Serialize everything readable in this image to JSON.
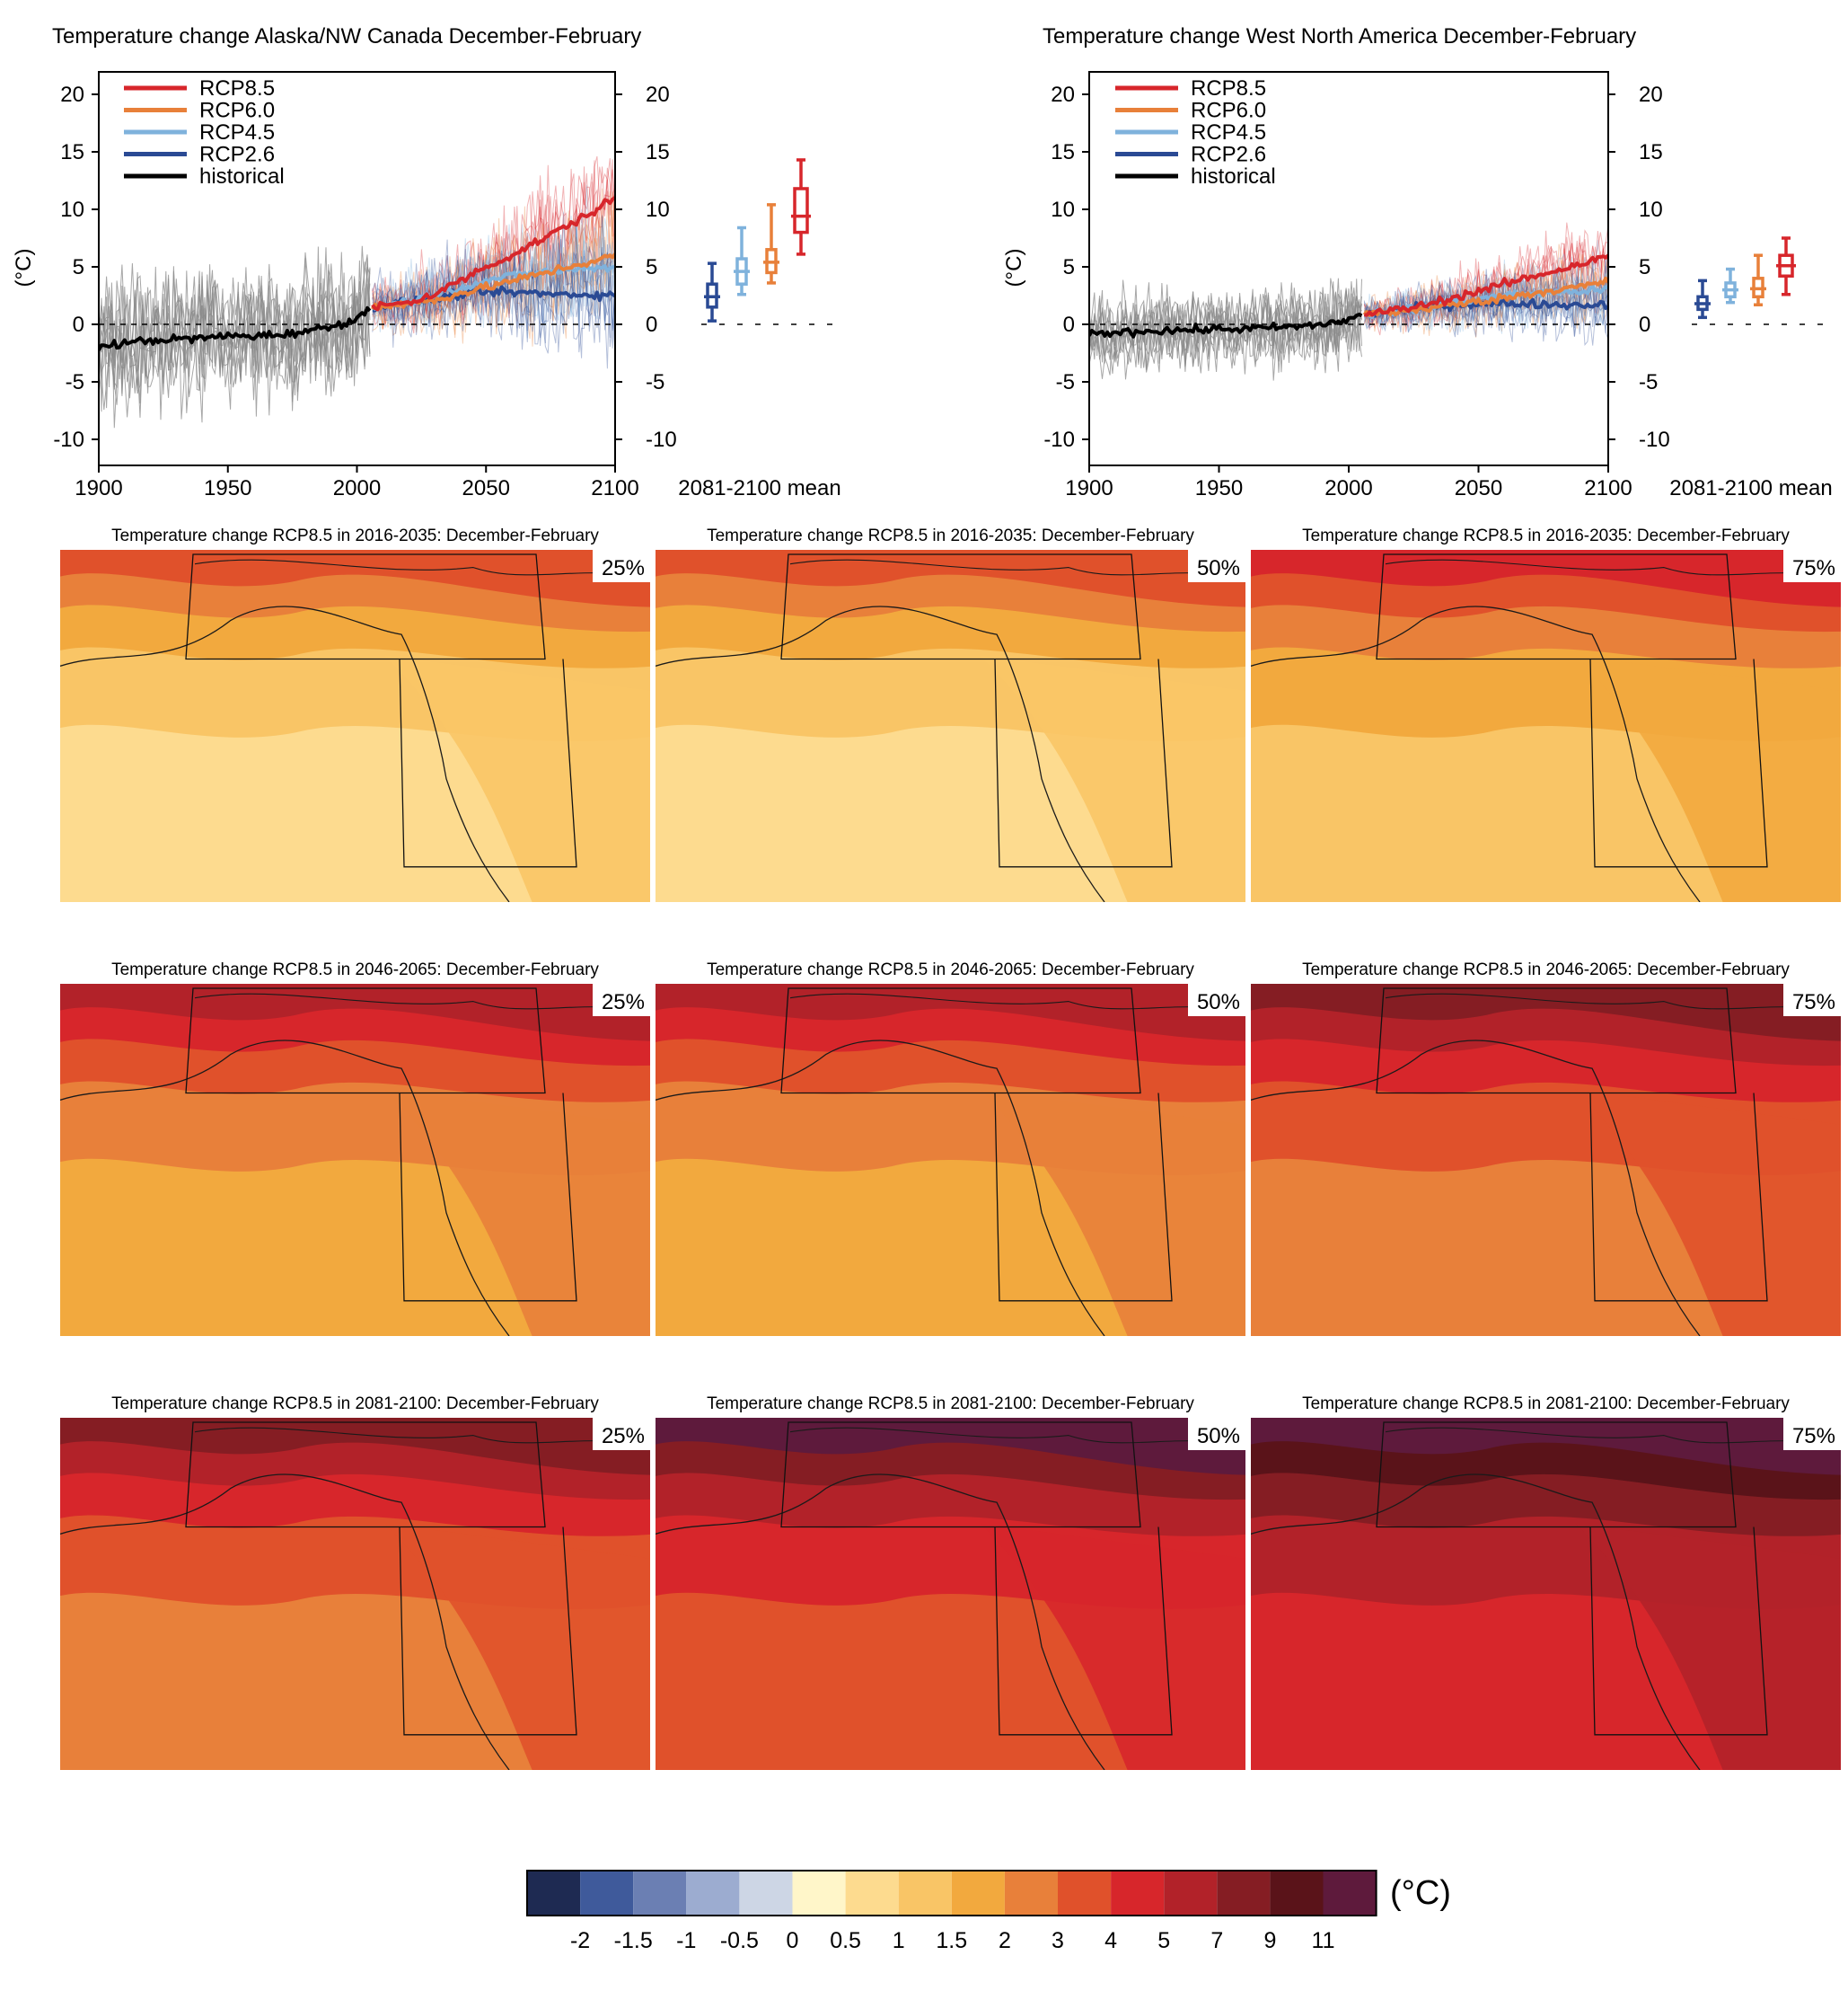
{
  "colors": {
    "rcp85": "#d7262b",
    "rcp60": "#e8803a",
    "rcp45": "#7fb2dc",
    "rcp26": "#2a4a94",
    "historical": "#000000",
    "historical_runs": "#8a8a8a"
  },
  "chart_data": [
    {
      "type": "line",
      "title": "Temperature change Alaska/NW Canada December-February",
      "xlabel": "",
      "ylabel": "(°C)",
      "xlim": [
        1900,
        2100
      ],
      "ylim": [
        -12,
        21
      ],
      "x_ticks": [
        1900,
        1950,
        2000,
        2050,
        2100
      ],
      "y_ticks": [
        20,
        15,
        10,
        5,
        0,
        -5,
        -10
      ],
      "legend": [
        "RCP8.5",
        "RCP6.0",
        "RCP4.5",
        "RCP2.6",
        "historical"
      ],
      "legend_placement": "top-left",
      "series": [
        {
          "name": "historical",
          "x": [
            1900,
            1910,
            1920,
            1930,
            1940,
            1950,
            1960,
            1970,
            1980,
            1990,
            2000,
            2005
          ],
          "y": [
            -2.0,
            -1.6,
            -1.4,
            -1.3,
            -1.2,
            -1.0,
            -1.0,
            -0.9,
            -0.6,
            -0.2,
            0.5,
            1.3
          ]
        },
        {
          "name": "RCP8.5",
          "x": [
            2006,
            2020,
            2030,
            2040,
            2050,
            2060,
            2070,
            2080,
            2090,
            2100
          ],
          "y": [
            1.5,
            1.9,
            2.6,
            3.8,
            5.0,
            6.0,
            7.2,
            8.4,
            9.6,
            11.0
          ]
        },
        {
          "name": "RCP6.0",
          "x": [
            2006,
            2020,
            2030,
            2040,
            2050,
            2060,
            2070,
            2080,
            2090,
            2100
          ],
          "y": [
            1.5,
            1.8,
            2.1,
            2.7,
            3.2,
            3.8,
            4.3,
            4.9,
            5.4,
            6.0
          ]
        },
        {
          "name": "RCP4.5",
          "x": [
            2006,
            2020,
            2030,
            2040,
            2050,
            2060,
            2070,
            2080,
            2090,
            2100
          ],
          "y": [
            1.5,
            2.0,
            2.6,
            3.2,
            3.8,
            4.2,
            4.5,
            4.7,
            4.9,
            5.0
          ]
        },
        {
          "name": "RCP2.6",
          "x": [
            2006,
            2020,
            2030,
            2040,
            2050,
            2060,
            2070,
            2080,
            2090,
            2100
          ],
          "y": [
            1.5,
            2.0,
            2.3,
            2.6,
            2.8,
            2.8,
            2.7,
            2.6,
            2.6,
            2.5
          ]
        }
      ],
      "boxplot": {
        "label": "2081-2100 mean",
        "boxes": [
          {
            "name": "RCP2.6",
            "min": 0.3,
            "q1": 1.5,
            "median": 2.4,
            "q3": 3.5,
            "max": 5.3
          },
          {
            "name": "RCP4.5",
            "min": 2.6,
            "q1": 3.5,
            "median": 4.6,
            "q3": 5.7,
            "max": 8.4
          },
          {
            "name": "RCP6.0",
            "min": 3.6,
            "q1": 4.5,
            "median": 5.4,
            "q3": 6.5,
            "max": 10.4
          },
          {
            "name": "RCP8.5",
            "min": 6.1,
            "q1": 8.0,
            "median": 9.4,
            "q3": 11.8,
            "max": 14.3
          }
        ]
      }
    },
    {
      "type": "line",
      "title": "Temperature change West North America December-February",
      "xlabel": "",
      "ylabel": "(°C)",
      "xlim": [
        1900,
        2100
      ],
      "ylim": [
        -12,
        21
      ],
      "x_ticks": [
        1900,
        1950,
        2000,
        2050,
        2100
      ],
      "y_ticks": [
        20,
        15,
        10,
        5,
        0,
        -5,
        -10
      ],
      "legend": [
        "RCP8.5",
        "RCP6.0",
        "RCP4.5",
        "RCP2.6",
        "historical"
      ],
      "legend_placement": "top-left",
      "series": [
        {
          "name": "historical",
          "x": [
            1900,
            1910,
            1920,
            1930,
            1940,
            1950,
            1960,
            1970,
            1980,
            1990,
            2000,
            2005
          ],
          "y": [
            -0.9,
            -0.7,
            -0.6,
            -0.5,
            -0.5,
            -0.4,
            -0.4,
            -0.3,
            -0.2,
            0.0,
            0.4,
            0.8
          ]
        },
        {
          "name": "RCP8.5",
          "x": [
            2006,
            2020,
            2030,
            2040,
            2050,
            2060,
            2070,
            2080,
            2090,
            2100
          ],
          "y": [
            0.9,
            1.3,
            1.7,
            2.3,
            2.9,
            3.5,
            4.1,
            4.7,
            5.3,
            5.9
          ]
        },
        {
          "name": "RCP6.0",
          "x": [
            2006,
            2020,
            2030,
            2040,
            2050,
            2060,
            2070,
            2080,
            2090,
            2100
          ],
          "y": [
            0.9,
            1.1,
            1.4,
            1.7,
            2.0,
            2.3,
            2.7,
            3.0,
            3.3,
            3.7
          ]
        },
        {
          "name": "RCP4.5",
          "x": [
            2006,
            2020,
            2030,
            2040,
            2050,
            2060,
            2070,
            2080,
            2090,
            2100
          ],
          "y": [
            0.9,
            1.2,
            1.6,
            1.9,
            2.2,
            2.5,
            2.7,
            2.8,
            2.9,
            3.0
          ]
        },
        {
          "name": "RCP2.6",
          "x": [
            2006,
            2020,
            2030,
            2040,
            2050,
            2060,
            2070,
            2080,
            2090,
            2100
          ],
          "y": [
            0.9,
            1.2,
            1.5,
            1.7,
            1.8,
            1.8,
            1.8,
            1.7,
            1.7,
            1.7
          ]
        }
      ],
      "boxplot": {
        "label": "2081-2100 mean",
        "boxes": [
          {
            "name": "RCP2.6",
            "min": 0.6,
            "q1": 1.3,
            "median": 1.8,
            "q3": 2.4,
            "max": 3.8
          },
          {
            "name": "RCP4.5",
            "min": 1.9,
            "q1": 2.4,
            "median": 3.0,
            "q3": 3.6,
            "max": 4.8
          },
          {
            "name": "RCP6.0",
            "min": 1.7,
            "q1": 2.4,
            "median": 3.1,
            "q3": 4.0,
            "max": 6.0
          },
          {
            "name": "RCP8.5",
            "min": 2.6,
            "q1": 4.2,
            "median": 5.1,
            "q3": 6.0,
            "max": 7.5
          }
        ]
      }
    },
    {
      "type": "heatmap",
      "maps": [
        {
          "title": "Temperature change RCP8.5 in 2016-2035: December-February",
          "percentile": "25%"
        },
        {
          "title": "Temperature change RCP8.5 in 2016-2035: December-February",
          "percentile": "50%"
        },
        {
          "title": "Temperature change RCP8.5 in 2016-2035: December-February",
          "percentile": "75%"
        },
        {
          "title": "Temperature change RCP8.5 in 2046-2065: December-February",
          "percentile": "25%"
        },
        {
          "title": "Temperature change RCP8.5 in 2046-2065: December-February",
          "percentile": "50%"
        },
        {
          "title": "Temperature change RCP8.5 in 2046-2065: December-February",
          "percentile": "75%"
        },
        {
          "title": "Temperature change RCP8.5 in 2081-2100: December-February",
          "percentile": "25%"
        },
        {
          "title": "Temperature change RCP8.5 in 2081-2100: December-February",
          "percentile": "50%"
        },
        {
          "title": "Temperature change RCP8.5 in 2081-2100: December-February",
          "percentile": "75%"
        }
      ],
      "colorbar": {
        "unit": "(°C)",
        "tick_labels": [
          "-2",
          "-1.5",
          "-1",
          "-0.5",
          "0",
          "0.5",
          "1",
          "1.5",
          "2",
          "3",
          "4",
          "5",
          "7",
          "9",
          "11"
        ],
        "colors": [
          "#1e2a52",
          "#3f5a9b",
          "#6b7fb3",
          "#9cacd0",
          "#cdd6e5",
          "#fff6c9",
          "#fddb8f",
          "#f9c566",
          "#f2a93e",
          "#e8803a",
          "#e0512b",
          "#d7262b",
          "#b22229",
          "#851d23",
          "#5a1319",
          "#5e1a3c"
        ]
      }
    }
  ]
}
